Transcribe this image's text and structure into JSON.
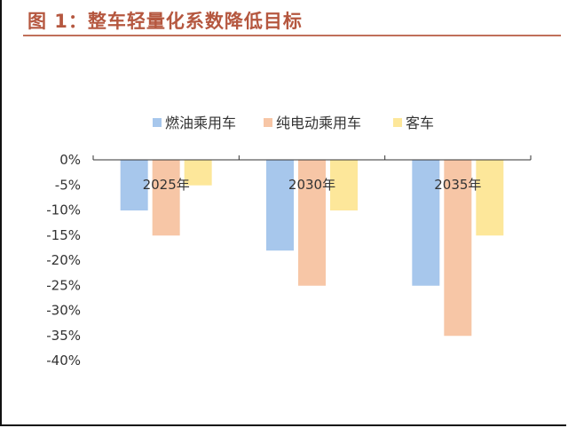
{
  "figure": {
    "title": "图 1：整车轻量化系数降低目标"
  },
  "colors": {
    "title": "#b5573f",
    "axis": "#333333",
    "label": "#333333"
  },
  "chart_data": {
    "type": "bar",
    "categories": [
      "2025年",
      "2030年",
      "2035年"
    ],
    "series": [
      {
        "name": "燃油乘用车",
        "color": "#a7c7ec",
        "values": [
          -10,
          -18,
          -25
        ]
      },
      {
        "name": "纯电动乘用车",
        "color": "#f7c6a6",
        "values": [
          -15,
          -25,
          -35
        ]
      },
      {
        "name": "客车",
        "color": "#fde79a",
        "values": [
          -5,
          -10,
          -15
        ]
      }
    ],
    "ylim": [
      -40,
      0
    ],
    "yticks": [
      0,
      -5,
      -10,
      -15,
      -20,
      -25,
      -30,
      -35,
      -40
    ],
    "ytick_labels": [
      "0%",
      "-5%",
      "-10%",
      "-15%",
      "-20%",
      "-25%",
      "-30%",
      "-35%",
      "-40%"
    ],
    "grid": false,
    "legend_position": "top"
  }
}
